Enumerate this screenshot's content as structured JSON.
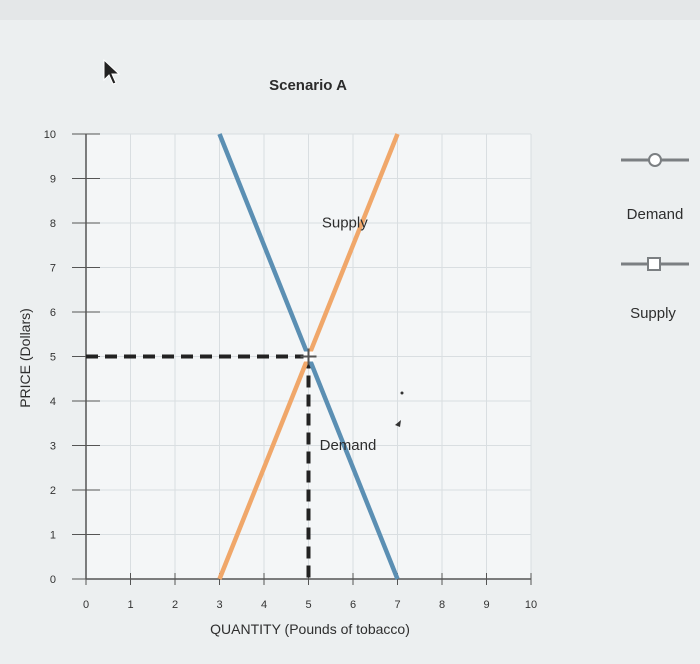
{
  "chart_data": {
    "type": "line",
    "title": "Scenario A",
    "xlabel": "QUANTITY (Pounds of tobacco)",
    "ylabel": "PRICE (Dollars)",
    "xlim": [
      0,
      10
    ],
    "ylim": [
      0,
      10
    ],
    "x_ticks": [
      "0",
      "1",
      "2",
      "3",
      "4",
      "5",
      "6",
      "7",
      "8",
      "9",
      "10"
    ],
    "y_ticks": [
      "0",
      "1",
      "2",
      "3",
      "4",
      "5",
      "6",
      "7",
      "8",
      "9",
      "10"
    ],
    "grid": true,
    "legend_position": "right",
    "series": [
      {
        "name": "Demand",
        "marker": "circle",
        "color": "#5b8fb3",
        "points": [
          [
            3,
            10
          ],
          [
            7,
            0
          ]
        ]
      },
      {
        "name": "Supply",
        "marker": "square",
        "color": "#f0a76a",
        "points": [
          [
            3,
            0
          ],
          [
            7,
            10
          ]
        ]
      }
    ],
    "annotations": [
      {
        "text": "Supply",
        "x": 5.3,
        "y": 7.9
      },
      {
        "text": "Demand",
        "x": 5.25,
        "y": 2.9
      }
    ],
    "equilibrium": {
      "x": 5,
      "y": 5,
      "guide_color": "#222222"
    }
  },
  "legend": [
    {
      "label": "Demand",
      "marker": "circle"
    },
    {
      "label": "Supply",
      "marker": "square"
    }
  ],
  "colors": {
    "demand": "#5b8fb3",
    "supply": "#f0a76a",
    "grid": "#d9dee1",
    "axis": "#555555",
    "plot_background": "#f4f6f7"
  }
}
